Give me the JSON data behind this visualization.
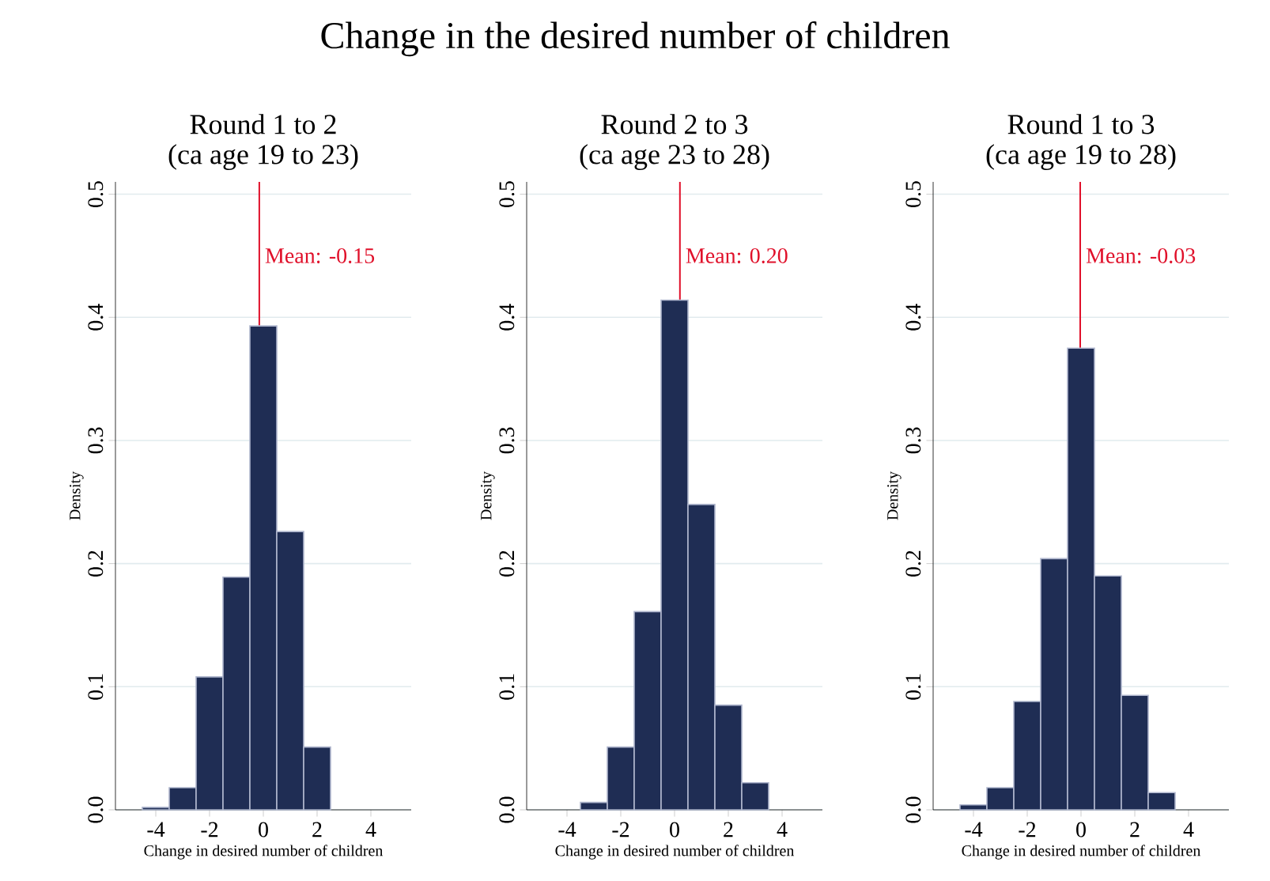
{
  "chart_data": [
    {
      "type": "histogram",
      "title": "Round 1 to 2",
      "subtitle": "(ca age 19 to 23)",
      "xlabel": "Change in desired number of children",
      "ylabel": "Density",
      "bins": [
        -4.5,
        -3.5,
        -2.5,
        -1.5,
        -0.5,
        0.5,
        1.5,
        2.5
      ],
      "values": [
        0.002,
        0.018,
        0.108,
        0.189,
        0.393,
        0.226,
        0.051
      ],
      "color": "#1f2d54",
      "xlim": [
        -5.5,
        5.5
      ],
      "ylim": [
        0,
        0.51
      ],
      "xticks": [
        -4,
        -2,
        0,
        2,
        4
      ],
      "yticks": [
        {
          "value": 0,
          "label": "0.0"
        },
        {
          "value": 0.1,
          "label": "0.1"
        },
        {
          "value": 0.2,
          "label": "0.2"
        },
        {
          "value": 0.3,
          "label": "0.3"
        },
        {
          "value": 0.4,
          "label": "0.4"
        },
        {
          "value": 0.5,
          "label": "0.5"
        }
      ],
      "grid": "y",
      "ref_lines": [
        {
          "axis": "x",
          "value": -0.15,
          "label": "Mean: -0.15",
          "color": "#e0102a"
        }
      ]
    },
    {
      "type": "histogram",
      "title": "Round 2 to 3",
      "subtitle": "(ca age 23 to 28)",
      "xlabel": "Change in desired number of children",
      "ylabel": "Density",
      "annotations": [
        "Change in the desired number of children"
      ],
      "bins": [
        -3.5,
        -2.5,
        -1.5,
        -0.5,
        0.5,
        1.5,
        2.5,
        3.5
      ],
      "values": [
        0.006,
        0.051,
        0.161,
        0.414,
        0.248,
        0.085,
        0.022
      ],
      "color": "#1f2d54",
      "xlim": [
        -5.5,
        5.5
      ],
      "ylim": [
        0,
        0.51
      ],
      "xticks": [
        -4,
        -2,
        0,
        2,
        4
      ],
      "yticks": [
        {
          "value": 0,
          "label": "0.0"
        },
        {
          "value": 0.1,
          "label": "0.1"
        },
        {
          "value": 0.2,
          "label": "0.2"
        },
        {
          "value": 0.3,
          "label": "0.3"
        },
        {
          "value": 0.4,
          "label": "0.4"
        },
        {
          "value": 0.5,
          "label": "0.5"
        }
      ],
      "grid": "y",
      "ref_lines": [
        {
          "axis": "x",
          "value": 0.2,
          "label": "Mean: 0.20",
          "color": "#e0102a"
        }
      ]
    },
    {
      "type": "histogram",
      "title": "Round 1 to 3",
      "subtitle": "(ca age 19 to 28)",
      "xlabel": "Change in desired number of children",
      "ylabel": "Density",
      "bins": [
        -4.5,
        -3.5,
        -2.5,
        -1.5,
        -0.5,
        0.5,
        1.5,
        2.5,
        3.5
      ],
      "values": [
        0.004,
        0.018,
        0.088,
        0.204,
        0.375,
        0.19,
        0.093,
        0.014
      ],
      "color": "#1f2d54",
      "xlim": [
        -5.5,
        5.5
      ],
      "ylim": [
        0,
        0.51
      ],
      "xticks": [
        -4,
        -2,
        0,
        2,
        4
      ],
      "yticks": [
        {
          "value": 0,
          "label": "0.0"
        },
        {
          "value": 0.1,
          "label": "0.1"
        },
        {
          "value": 0.2,
          "label": "0.2"
        },
        {
          "value": 0.3,
          "label": "0.3"
        },
        {
          "value": 0.4,
          "label": "0.4"
        },
        {
          "value": 0.5,
          "label": "0.5"
        }
      ],
      "grid": "y",
      "ref_lines": [
        {
          "axis": "x",
          "value": -0.03,
          "label": "Mean: -0.03",
          "color": "#e0102a"
        }
      ]
    }
  ]
}
